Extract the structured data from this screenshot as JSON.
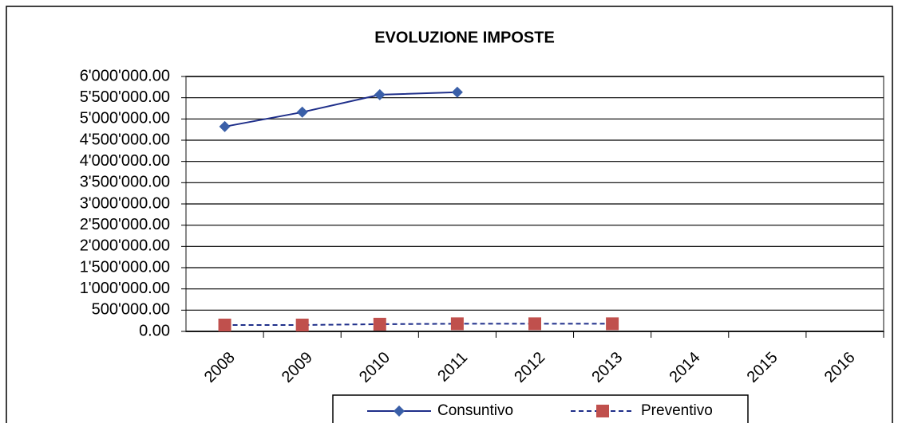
{
  "chart_data": {
    "type": "line",
    "title": "EVOLUZIONE IMPOSTE",
    "categories": [
      "2008",
      "2009",
      "2010",
      "2011",
      "2012",
      "2013",
      "2014",
      "2015",
      "2016"
    ],
    "series": [
      {
        "name": "Consuntivo",
        "color": "#1f2f8a",
        "marker_color": "#3a5fa8",
        "marker": "diamond",
        "line_style": "solid",
        "values": [
          4820000,
          5160000,
          5570000,
          5630000,
          null,
          null,
          null,
          null,
          null
        ]
      },
      {
        "name": "Preventivo",
        "color": "#1f2f8a",
        "marker_color": "#c0504d",
        "marker": "square",
        "line_style": "dashed",
        "values": [
          150000,
          150000,
          170000,
          180000,
          180000,
          180000,
          null,
          null,
          null
        ]
      }
    ],
    "ylim": [
      0,
      6000000
    ],
    "yticks": [
      {
        "value": 0,
        "label": "0.00"
      },
      {
        "value": 500000,
        "label": "500'000.00"
      },
      {
        "value": 1000000,
        "label": "1'000'000.00"
      },
      {
        "value": 1500000,
        "label": "1'500'000.00"
      },
      {
        "value": 2000000,
        "label": "2'000'000.00"
      },
      {
        "value": 2500000,
        "label": "2'500'000.00"
      },
      {
        "value": 3000000,
        "label": "3'000'000.00"
      },
      {
        "value": 3500000,
        "label": "3'500'000.00"
      },
      {
        "value": 4000000,
        "label": "4'000'000.00"
      },
      {
        "value": 4500000,
        "label": "4'500'000.00"
      },
      {
        "value": 5000000,
        "label": "5'000'000.00"
      },
      {
        "value": 5500000,
        "label": "5'500'000.00"
      },
      {
        "value": 6000000,
        "label": "6'000'000.00"
      }
    ],
    "grid": true,
    "legend": "bottom"
  }
}
